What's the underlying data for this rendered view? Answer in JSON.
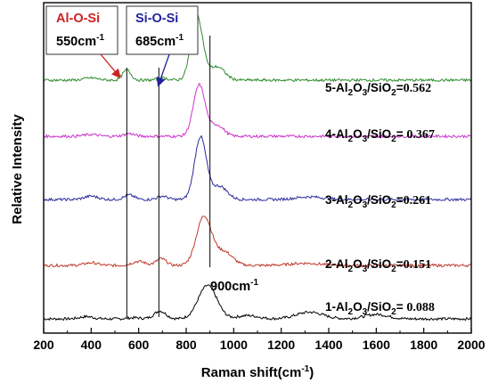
{
  "chart_data": {
    "type": "line",
    "xlabel": "Raman shift(cm",
    "xlabel_sup": "-1",
    "xlabel_tail": ")",
    "ylabel": "Relative Intensity",
    "xlim": [
      200,
      2000
    ],
    "xticks": [
      "200",
      "400",
      "600",
      "800",
      "1000",
      "1200",
      "1400",
      "1600",
      "1800",
      "2000"
    ],
    "grid": false,
    "legend": "inline labels at right of each trace",
    "series": [
      {
        "name": "1-Al2O3/SiO2=0.088",
        "label_parts": {
          "prefix": "1-Al",
          "s1": "2",
          "mid": "O",
          "s2": "3",
          "mid2": "/SiO",
          "s3": "2",
          "eq": "= ",
          "value": "0.088"
        },
        "color": "#000000",
        "offset": 0,
        "peaks": [
          [
            380,
            0.01,
            40
          ],
          [
            580,
            0.005,
            40
          ],
          [
            690,
            0.035,
            35
          ],
          [
            890,
            0.15,
            55
          ],
          [
            1060,
            0.015,
            60
          ],
          [
            1320,
            0.03,
            80
          ],
          [
            1600,
            0.02,
            70
          ]
        ]
      },
      {
        "name": "2-Al2O3/SiO2=0.151",
        "label_parts": {
          "prefix": "2-Al",
          "s1": "2",
          "mid": "O",
          "s2": "3",
          "mid2": "/SiO",
          "s3": "2",
          "eq": "=",
          "value": "0.151"
        },
        "color": "#c0392b",
        "offset": 1,
        "peaks": [
          [
            400,
            0.012,
            40
          ],
          [
            600,
            0.018,
            40
          ],
          [
            695,
            0.03,
            30
          ],
          [
            875,
            0.22,
            45
          ],
          [
            960,
            0.06,
            50
          ],
          [
            1300,
            0.01,
            90
          ]
        ]
      },
      {
        "name": "3-Al2O3/SiO2=0.261",
        "label_parts": {
          "prefix": "3-Al",
          "s1": "2",
          "mid": "O",
          "s2": "3",
          "mid2": "/SiO",
          "s3": "2",
          "eq": "=",
          "value": "0.261"
        },
        "color": "#2c2c9c",
        "offset": 2,
        "peaks": [
          [
            400,
            0.015,
            40
          ],
          [
            560,
            0.02,
            30
          ],
          [
            700,
            0.015,
            30
          ],
          [
            860,
            0.28,
            35
          ],
          [
            940,
            0.06,
            45
          ],
          [
            1320,
            0.012,
            80
          ]
        ]
      },
      {
        "name": "4-Al2O3/SiO2=0.367",
        "label_parts": {
          "prefix": "4-Al",
          "s1": "2",
          "mid": "O",
          "s2": "3",
          "mid2": "/SiO",
          "s3": "2",
          "eq": "= ",
          "value": "0.367"
        },
        "color": "#cc33cc",
        "offset": 3,
        "peaks": [
          [
            400,
            0.008,
            40
          ],
          [
            560,
            0.012,
            30
          ],
          [
            855,
            0.23,
            35
          ],
          [
            930,
            0.05,
            40
          ]
        ]
      },
      {
        "name": "5-Al2O3/SiO2=0.562",
        "label_parts": {
          "prefix": "5-Al",
          "s1": "2",
          "mid": "O",
          "s2": "3",
          "mid2": "/SiO",
          "s3": "2",
          "eq": "=",
          "value": "0.562"
        },
        "color": "#2e8b2e",
        "offset": 4,
        "peaks": [
          [
            400,
            0.01,
            40
          ],
          [
            550,
            0.045,
            25
          ],
          [
            700,
            0.01,
            30
          ],
          [
            845,
            0.29,
            35
          ],
          [
            930,
            0.06,
            45
          ]
        ]
      }
    ],
    "annotations": [
      {
        "title": "Al-O-Si",
        "sub": "550cm",
        "sup": "-1",
        "x": 550,
        "title_color": "#cc2222"
      },
      {
        "title": "Si-O-Si",
        "sub": "685cm",
        "sup": "-1",
        "x": 685,
        "title_color": "#22229c"
      },
      {
        "title": "",
        "sub": "900cm",
        "sup": "-1",
        "x": 900,
        "title_color": "#000000"
      }
    ]
  }
}
